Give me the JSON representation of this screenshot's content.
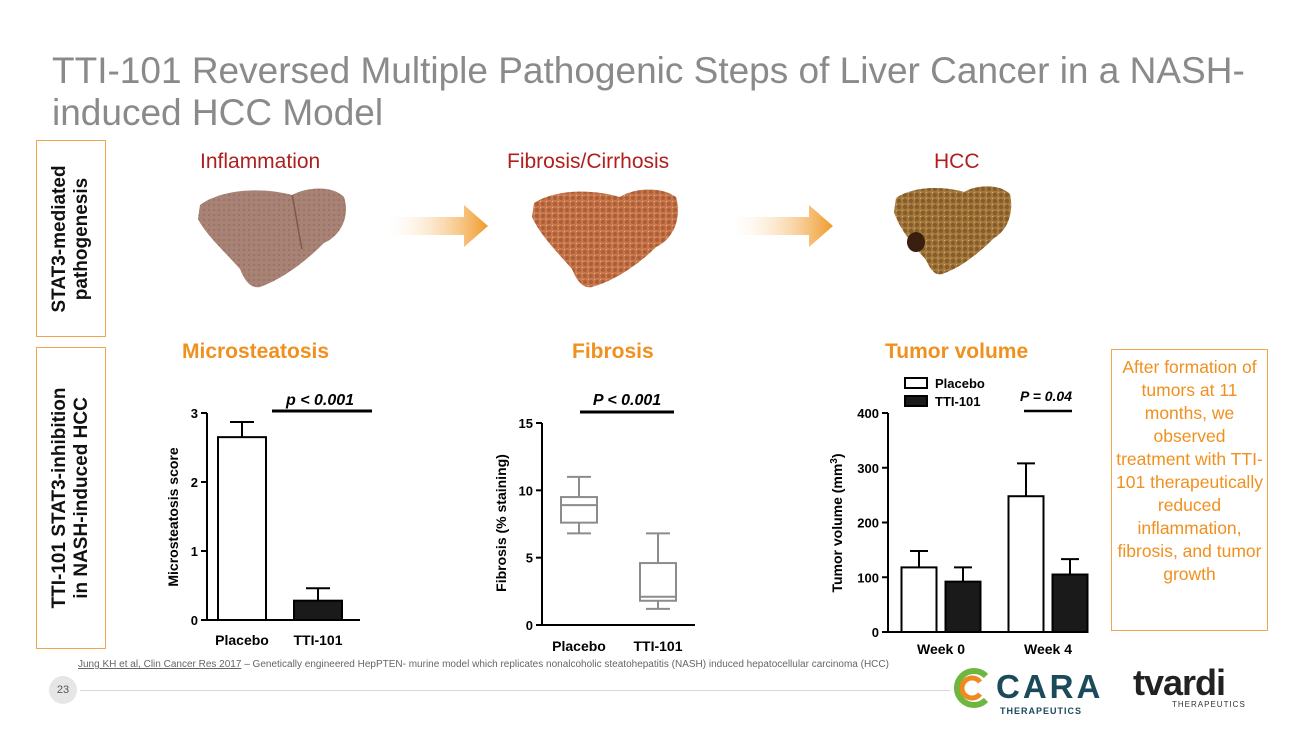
{
  "title": "TTI-101 Reversed Multiple Pathogenic Steps of Liver Cancer in a NASH-induced HCC Model",
  "side_labels": {
    "top_line1": "STAT3-mediated",
    "top_line2": "pathogenesis",
    "bottom_line1": "TTI-101 STAT3-inhibition",
    "bottom_line2": "in NASH-induced HCC"
  },
  "stages": [
    "Inflammation",
    "Fibrosis/Cirrhosis",
    "HCC"
  ],
  "note": "After formation of tumors at 11 months, we observed treatment with TTI-101 therapeutically reduced inflammation, fibrosis, and tumor growth",
  "reference": {
    "link": "Jung KH et al, Clin Cancer Res 2017",
    "text": " – Genetically engineered HepPTEN- murine model which replicates nonalcoholic steatohepatitis (NASH) induced hepatocellular carcinoma (HCC)"
  },
  "page_number": "23",
  "logos": {
    "cara": "CARA",
    "cara_sub": "THERAPEUTICS",
    "tvardi": "tvardi",
    "tvardi_sub": "THERAPEUTICS"
  },
  "colors": {
    "title_gray": "#8a8a8a",
    "accent_orange": "#f0901f",
    "stage_red": "#b11e1e",
    "placebo_fill": "#ffffff",
    "tti_fill": "#1a1a1a",
    "box_gray": "#8c8c8c",
    "cara_green": "#6fb640",
    "cara_orange": "#ef8a1f"
  },
  "chart_data": [
    {
      "type": "bar",
      "title": "Microsteatosis",
      "ylabel": "Microsteatosis score",
      "categories": [
        "Placebo",
        "TTI-101"
      ],
      "values": [
        2.65,
        0.28
      ],
      "errors": [
        0.22,
        0.18
      ],
      "ylim": [
        0,
        3
      ],
      "yticks": [
        "0",
        "1",
        "2",
        "3"
      ],
      "annotation": "p < 0.001"
    },
    {
      "type": "box",
      "title": "Fibrosis",
      "ylabel": "Fibrosis (% staining)",
      "categories": [
        "Placebo",
        "TTI-101"
      ],
      "boxes": [
        {
          "min": 6.8,
          "q1": 7.6,
          "median": 8.9,
          "q3": 9.5,
          "max": 11.0
        },
        {
          "min": 1.2,
          "q1": 1.8,
          "median": 2.1,
          "q3": 4.6,
          "max": 6.8
        }
      ],
      "ylim": [
        0,
        15
      ],
      "yticks": [
        "0",
        "5",
        "10",
        "15"
      ],
      "annotation": "P < 0.001"
    },
    {
      "type": "bar",
      "title": "Tumor volume",
      "ylabel": "Tumor volume (mm3)",
      "categories": [
        "Week 0",
        "Week 4"
      ],
      "series": [
        {
          "name": "Placebo",
          "values": [
            118,
            248
          ],
          "errors": [
            30,
            60
          ]
        },
        {
          "name": "TTI-101",
          "values": [
            92,
            105
          ],
          "errors": [
            26,
            28
          ]
        }
      ],
      "ylim": [
        0,
        400
      ],
      "yticks": [
        "0",
        "100",
        "200",
        "300",
        "400"
      ],
      "annotation": "P = 0.04",
      "legend": "top-left"
    }
  ]
}
